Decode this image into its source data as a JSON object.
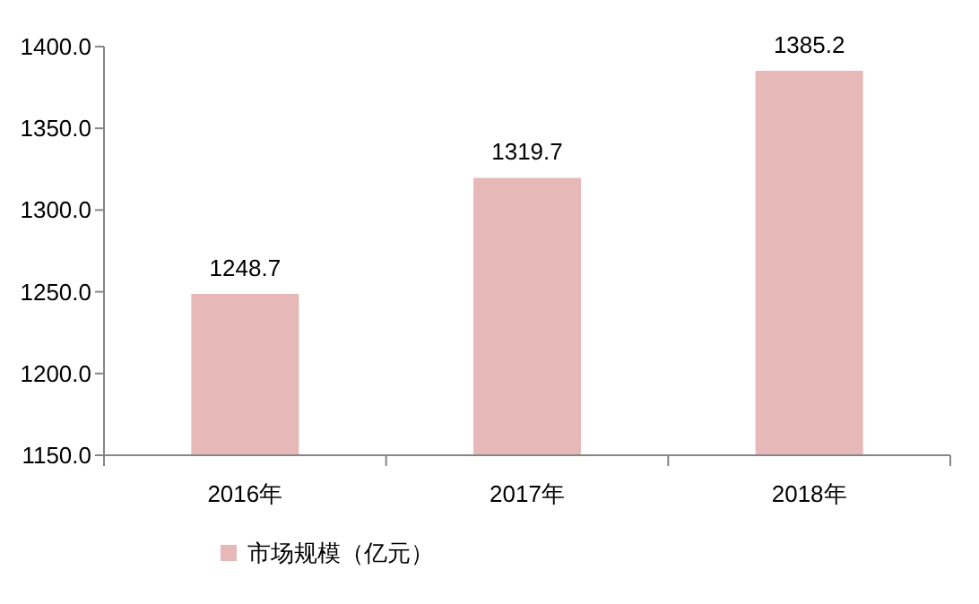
{
  "chart_data": {
    "type": "bar",
    "categories": [
      "2016年",
      "2017年",
      "2018年"
    ],
    "series": [
      {
        "name": "市场规模（亿元）",
        "color": "#e6b9b8",
        "values": [
          1248.7,
          1319.7,
          1385.2
        ]
      }
    ],
    "ylim": [
      1150,
      1400
    ],
    "yticks": [
      {
        "value": 1150,
        "label": "1150.0"
      },
      {
        "value": 1200,
        "label": "1200.0"
      },
      {
        "value": 1250,
        "label": "1250.0"
      },
      {
        "value": 1300,
        "label": "1300.0"
      },
      {
        "value": 1350,
        "label": "1350.0"
      },
      {
        "value": 1400,
        "label": "1400.0"
      }
    ],
    "data_labels": true,
    "legend": "bottom",
    "grid": false
  }
}
